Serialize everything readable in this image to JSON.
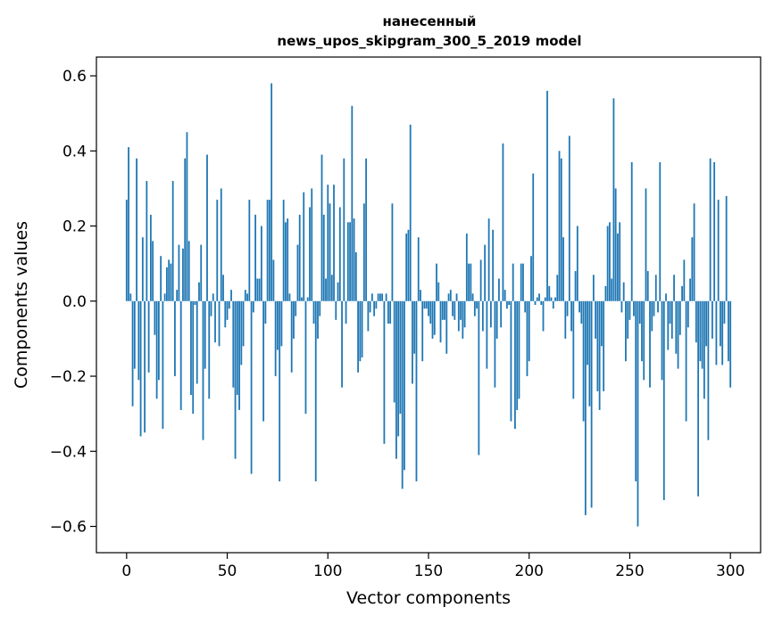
{
  "chart_data": {
    "type": "bar",
    "title_line1": "нанесенный",
    "title_line2": "news_upos_skipgram_300_5_2019 model",
    "xlabel": "Vector components",
    "ylabel": "Components values",
    "xlim": [
      -15,
      315
    ],
    "ylim": [
      -0.67,
      0.65
    ],
    "xticks": [
      0,
      50,
      100,
      150,
      200,
      250,
      300
    ],
    "xtick_labels": [
      "0",
      "50",
      "100",
      "150",
      "200",
      "250",
      "300"
    ],
    "yticks": [
      -0.6,
      -0.4,
      -0.2,
      0.0,
      0.2,
      0.4,
      0.6
    ],
    "ytick_labels": [
      "−0.6",
      "−0.4",
      "−0.2",
      "0.0",
      "0.2",
      "0.4",
      "0.6"
    ],
    "bar_color": "#1f77b4",
    "grid": false,
    "values": [
      0.27,
      0.41,
      0.02,
      -0.28,
      -0.18,
      0.38,
      -0.21,
      -0.36,
      0.17,
      -0.35,
      0.32,
      -0.19,
      0.23,
      0.16,
      -0.09,
      -0.26,
      -0.21,
      0.12,
      -0.34,
      0.02,
      0.09,
      0.11,
      0.1,
      0.32,
      -0.2,
      0.03,
      0.15,
      -0.29,
      0.14,
      0.38,
      0.45,
      0.16,
      -0.25,
      -0.3,
      -0.01,
      -0.22,
      0.05,
      0.15,
      -0.37,
      -0.18,
      0.39,
      -0.26,
      -0.04,
      0.02,
      -0.11,
      0.27,
      -0.12,
      0.3,
      0.07,
      -0.07,
      -0.05,
      -0.02,
      0.03,
      -0.23,
      -0.42,
      -0.25,
      -0.29,
      -0.17,
      -0.12,
      0.03,
      0.02,
      0.27,
      -0.46,
      -0.03,
      0.23,
      0.06,
      0.06,
      0.2,
      -0.32,
      -0.06,
      0.27,
      0.27,
      0.58,
      0.11,
      -0.2,
      -0.13,
      -0.48,
      -0.12,
      0.27,
      0.21,
      0.22,
      0.02,
      -0.19,
      -0.1,
      -0.04,
      0.15,
      0.23,
      0.01,
      0.29,
      -0.3,
      0.01,
      0.25,
      0.3,
      -0.06,
      -0.48,
      -0.1,
      -0.04,
      0.39,
      0.23,
      0.06,
      0.31,
      0.26,
      0.07,
      0.31,
      -0.05,
      0.05,
      0.25,
      -0.23,
      0.38,
      -0.06,
      0.21,
      0.21,
      0.52,
      0.22,
      0.13,
      -0.19,
      -0.16,
      -0.15,
      0.26,
      0.38,
      -0.08,
      -0.03,
      0.02,
      -0.04,
      -0.02,
      0.02,
      0.02,
      0.02,
      -0.38,
      0.02,
      -0.06,
      -0.06,
      0.26,
      -0.27,
      -0.42,
      -0.36,
      -0.3,
      -0.5,
      -0.45,
      0.18,
      0.19,
      0.47,
      -0.22,
      -0.14,
      -0.48,
      0.17,
      0.03,
      -0.16,
      -0.02,
      -0.02,
      -0.04,
      -0.06,
      -0.1,
      -0.09,
      0.1,
      0.05,
      -0.11,
      -0.05,
      -0.05,
      -0.14,
      0.02,
      0.03,
      -0.04,
      -0.05,
      0.02,
      -0.08,
      -0.05,
      -0.1,
      -0.07,
      0.18,
      0.1,
      0.1,
      0.02,
      -0.04,
      -0.02,
      -0.41,
      0.11,
      -0.08,
      0.15,
      -0.18,
      0.22,
      -0.07,
      0.19,
      -0.23,
      -0.1,
      0.06,
      -0.07,
      0.42,
      0.03,
      -0.02,
      -0.01,
      -0.32,
      0.1,
      -0.34,
      -0.29,
      -0.26,
      0.1,
      0.1,
      -0.03,
      -0.2,
      -0.16,
      0.12,
      0.34,
      -0.01,
      0.01,
      0.02,
      -0.01,
      -0.08,
      0.01,
      0.56,
      0.04,
      0.01,
      -0.02,
      0.01,
      0.07,
      0.4,
      0.38,
      0.17,
      -0.1,
      -0.04,
      0.44,
      -0.08,
      -0.26,
      0.08,
      0.2,
      -0.03,
      -0.06,
      -0.32,
      -0.57,
      -0.17,
      -0.28,
      -0.55,
      0.07,
      -0.1,
      -0.24,
      -0.29,
      -0.12,
      -0.24,
      0.04,
      0.2,
      0.21,
      0.06,
      0.54,
      0.3,
      0.18,
      0.21,
      -0.03,
      0.05,
      -0.16,
      -0.1,
      -0.05,
      0.37,
      -0.04,
      -0.48,
      -0.6,
      -0.06,
      -0.16,
      -0.21,
      0.3,
      0.08,
      -0.23,
      -0.08,
      -0.04,
      0.07,
      -0.03,
      0.37,
      -0.21,
      -0.53,
      0.02,
      -0.13,
      -0.06,
      -0.1,
      0.07,
      -0.14,
      -0.18,
      -0.09,
      0.04,
      0.11,
      -0.32,
      -0.07,
      0.06,
      0.17,
      0.26,
      -0.11,
      -0.52,
      -0.16,
      -0.18,
      -0.26,
      -0.12,
      -0.37,
      0.38,
      -0.1,
      0.37,
      -0.17,
      0.27,
      -0.12,
      -0.17,
      -0.06,
      0.28,
      -0.16,
      -0.23
    ]
  }
}
